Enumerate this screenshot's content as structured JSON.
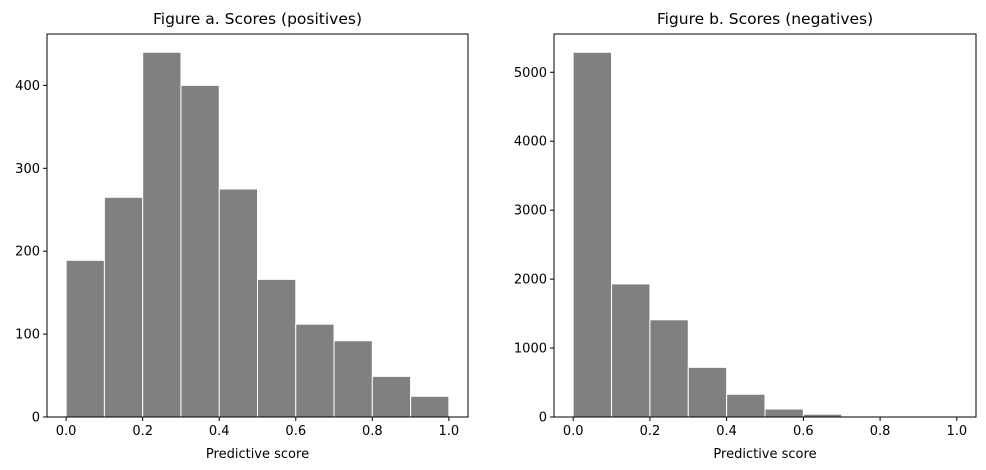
{
  "bar_color": "#808080",
  "bar_edge_color": "#ffffff",
  "chart_data": [
    {
      "type": "bar",
      "title": "Figure a. Scores (positives)",
      "xlabel": "Predictive score",
      "ylabel": "",
      "bin_edges": [
        0.0,
        0.1,
        0.2,
        0.3,
        0.4,
        0.5,
        0.6,
        0.7,
        0.8,
        0.9,
        1.0
      ],
      "values": [
        189,
        265,
        440,
        400,
        275,
        166,
        112,
        92,
        49,
        25
      ],
      "xlim": [
        -0.05,
        1.05
      ],
      "ylim": [
        0,
        462
      ],
      "xticks": [
        0.0,
        0.2,
        0.4,
        0.6,
        0.8,
        1.0
      ],
      "xtick_labels": [
        "0.0",
        "0.2",
        "0.4",
        "0.6",
        "0.8",
        "1.0"
      ],
      "yticks": [
        0,
        100,
        200,
        300,
        400
      ],
      "ytick_labels": [
        "0",
        "100",
        "200",
        "300",
        "400"
      ],
      "grid": false
    },
    {
      "type": "bar",
      "title": "Figure b. Scores (negatives)",
      "xlabel": "Predictive score",
      "ylabel": "",
      "bin_edges": [
        0.0,
        0.1,
        0.2,
        0.3,
        0.4,
        0.5,
        0.6,
        0.7,
        0.8,
        0.9,
        1.0
      ],
      "values": [
        5290,
        1930,
        1410,
        720,
        330,
        115,
        40,
        15,
        5,
        3
      ],
      "xlim": [
        -0.05,
        1.05
      ],
      "ylim": [
        0,
        5555
      ],
      "xticks": [
        0.0,
        0.2,
        0.4,
        0.6,
        0.8,
        1.0
      ],
      "xtick_labels": [
        "0.0",
        "0.2",
        "0.4",
        "0.6",
        "0.8",
        "1.0"
      ],
      "yticks": [
        0,
        1000,
        2000,
        3000,
        4000,
        5000
      ],
      "ytick_labels": [
        "0",
        "1000",
        "2000",
        "3000",
        "4000",
        "5000"
      ],
      "grid": false
    }
  ]
}
